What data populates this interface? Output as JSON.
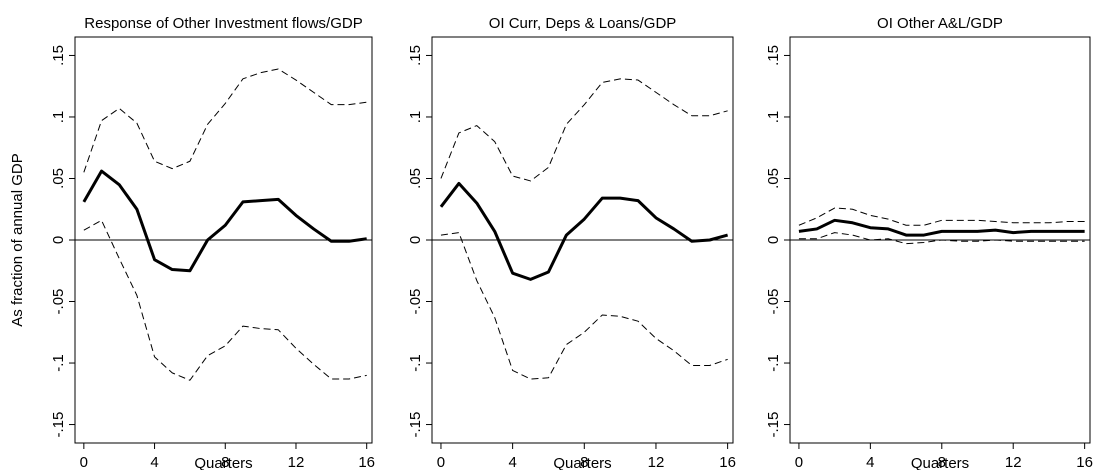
{
  "chart_data": [
    {
      "type": "line",
      "title": "Response of Other Investment flows/GDP",
      "xlabel": "Quarters",
      "ylabel": "As fraction of annual GDP",
      "x": [
        0,
        1,
        2,
        3,
        4,
        5,
        6,
        7,
        8,
        9,
        10,
        11,
        12,
        13,
        14,
        15,
        16
      ],
      "series": [
        {
          "color": "#000000",
          "style": "solid",
          "values": [
            0.031,
            0.056,
            0.045,
            0.025,
            -0.016,
            -0.024,
            -0.025,
            0.0,
            0.012,
            0.031,
            0.032,
            0.033,
            0.02,
            0.009,
            -0.001,
            -0.001,
            0.001
          ]
        },
        {
          "color": "#000000",
          "style": "dashed",
          "values": [
            0.055,
            0.097,
            0.107,
            0.095,
            0.064,
            0.058,
            0.064,
            0.094,
            0.111,
            0.131,
            0.136,
            0.139,
            0.13,
            0.12,
            0.11,
            0.11,
            0.112
          ]
        },
        {
          "color": "#000000",
          "style": "dashed",
          "values": [
            0.008,
            0.016,
            -0.015,
            -0.045,
            -0.095,
            -0.108,
            -0.114,
            -0.094,
            -0.086,
            -0.07,
            -0.072,
            -0.073,
            -0.088,
            -0.101,
            -0.113,
            -0.113,
            -0.11
          ]
        }
      ],
      "refline": 0,
      "xlim": [
        -0.5,
        16.3
      ],
      "ylim": [
        -0.165,
        0.165
      ],
      "xticks": [
        0,
        4,
        8,
        12,
        16
      ],
      "yticks": [
        {
          "value": -0.15,
          "label": "-.15"
        },
        {
          "value": -0.1,
          "label": "-.1"
        },
        {
          "value": -0.05,
          "label": "-.05"
        },
        0,
        {
          "value": 0.05,
          "label": ".05"
        },
        {
          "value": 0.1,
          "label": ".1"
        },
        {
          "value": 0.15,
          "label": ".15"
        }
      ]
    },
    {
      "type": "line",
      "title": "OI Curr, Deps & Loans/GDP",
      "xlabel": "Quarters",
      "x": [
        0,
        1,
        2,
        3,
        4,
        5,
        6,
        7,
        8,
        9,
        10,
        11,
        12,
        13,
        14,
        15,
        16
      ],
      "series": [
        {
          "color": "#000000",
          "style": "solid",
          "values": [
            0.027,
            0.046,
            0.03,
            0.007,
            -0.027,
            -0.032,
            -0.026,
            0.004,
            0.017,
            0.034,
            0.034,
            0.032,
            0.018,
            0.009,
            -0.001,
            0.0,
            0.004
          ]
        },
        {
          "color": "#000000",
          "style": "dashed",
          "values": [
            0.05,
            0.087,
            0.093,
            0.08,
            0.052,
            0.048,
            0.059,
            0.094,
            0.11,
            0.128,
            0.131,
            0.13,
            0.12,
            0.11,
            0.101,
            0.101,
            0.105
          ]
        },
        {
          "color": "#000000",
          "style": "dashed",
          "values": [
            0.004,
            0.006,
            -0.033,
            -0.063,
            -0.106,
            -0.113,
            -0.112,
            -0.085,
            -0.075,
            -0.061,
            -0.062,
            -0.066,
            -0.08,
            -0.09,
            -0.102,
            -0.102,
            -0.097
          ]
        }
      ],
      "refline": 0,
      "xlim": [
        -0.5,
        16.3
      ],
      "ylim": [
        -0.165,
        0.165
      ],
      "xticks": [
        0,
        4,
        8,
        12,
        16
      ],
      "yticks": [
        {
          "value": -0.15,
          "label": "-.15"
        },
        {
          "value": -0.1,
          "label": "-.1"
        },
        {
          "value": -0.05,
          "label": "-.05"
        },
        0,
        {
          "value": 0.05,
          "label": ".05"
        },
        {
          "value": 0.1,
          "label": ".1"
        },
        {
          "value": 0.15,
          "label": ".15"
        }
      ]
    },
    {
      "type": "line",
      "title": "OI Other A&L/GDP",
      "xlabel": "Quarters",
      "x": [
        0,
        1,
        2,
        3,
        4,
        5,
        6,
        7,
        8,
        9,
        10,
        11,
        12,
        13,
        14,
        15,
        16
      ],
      "series": [
        {
          "color": "#000000",
          "style": "solid",
          "values": [
            0.007,
            0.009,
            0.016,
            0.014,
            0.01,
            0.009,
            0.004,
            0.004,
            0.007,
            0.007,
            0.007,
            0.008,
            0.006,
            0.007,
            0.007,
            0.007,
            0.007
          ]
        },
        {
          "color": "#000000",
          "style": "dashed",
          "values": [
            0.012,
            0.018,
            0.026,
            0.025,
            0.02,
            0.017,
            0.012,
            0.012,
            0.016,
            0.016,
            0.016,
            0.015,
            0.014,
            0.014,
            0.014,
            0.015,
            0.015
          ]
        },
        {
          "color": "#000000",
          "style": "dashed",
          "values": [
            0.001,
            0.001,
            0.006,
            0.004,
            0.0,
            0.001,
            -0.003,
            -0.002,
            0.0,
            -0.001,
            -0.001,
            0.0,
            -0.001,
            -0.001,
            -0.001,
            -0.001,
            -0.001
          ]
        }
      ],
      "refline": 0,
      "xlim": [
        -0.5,
        16.3
      ],
      "ylim": [
        -0.165,
        0.165
      ],
      "xticks": [
        0,
        4,
        8,
        12,
        16
      ],
      "yticks": [
        {
          "value": -0.15,
          "label": "-.15"
        },
        {
          "value": -0.1,
          "label": "-.1"
        },
        {
          "value": -0.05,
          "label": "-.05"
        },
        0,
        {
          "value": 0.05,
          "label": ".05"
        },
        {
          "value": 0.1,
          "label": ".1"
        },
        {
          "value": 0.15,
          "label": ".15"
        }
      ]
    }
  ]
}
